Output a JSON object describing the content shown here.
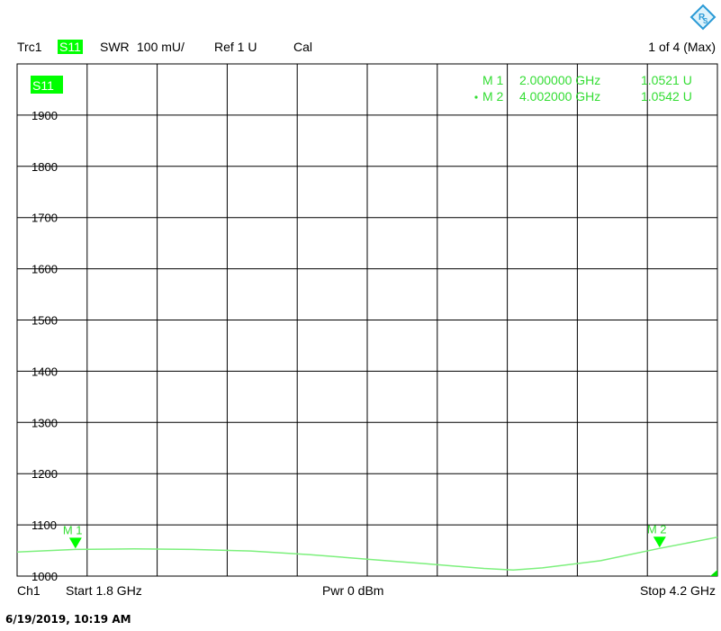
{
  "header": {
    "trace": "Trc1",
    "param_badge": "S11",
    "format": "SWR",
    "scale": "100 mU/",
    "ref": "Ref 1 U",
    "cal": "Cal",
    "page": "1 of 4 (Max)"
  },
  "footer": {
    "channel": "Ch1",
    "start": "Start  1.8 GHz",
    "power": "Pwr  0 dBm",
    "stop": "Stop  4.2 GHz"
  },
  "timestamp": "6/19/2019, 10:19 AM",
  "markers_table": [
    {
      "label": "M 1",
      "freq": "2.000000 GHz",
      "value": "1.0521 U",
      "active": false
    },
    {
      "label": "M 2",
      "freq": "4.002000 GHz",
      "value": "1.0542 U",
      "active": true
    }
  ],
  "colors": {
    "trace": "#7cf07c",
    "badge": "#00ff00",
    "marker_text": "#33dd33",
    "grid": "#000000"
  },
  "chart_data": {
    "type": "line",
    "trace_label": "S11",
    "xlim": [
      1.8,
      4.2
    ],
    "ylim": [
      1000,
      2000
    ],
    "y_ticks": [
      1900,
      1800,
      1700,
      1600,
      1500,
      1400,
      1300,
      1200,
      1100,
      1000
    ],
    "y_tick_labels": [
      "1900",
      "1800",
      "1700",
      "1600",
      "1500",
      "1400",
      "1300",
      "1200",
      "1100",
      "1000"
    ],
    "grid": true,
    "series": [
      {
        "x": [
          1.8,
          2.0,
          2.2,
          2.4,
          2.6,
          2.8,
          3.0,
          3.2,
          3.4,
          3.5,
          3.6,
          3.8,
          4.0,
          4.2
        ],
        "values": [
          1047,
          1052,
          1053,
          1052,
          1049,
          1042,
          1033,
          1024,
          1015,
          1012,
          1016,
          1030,
          1054,
          1076
        ]
      }
    ],
    "markers": [
      {
        "label": "M 1",
        "x": 2.0,
        "y": 1052
      },
      {
        "label": "M 2",
        "x": 4.002,
        "y": 1054
      }
    ]
  }
}
